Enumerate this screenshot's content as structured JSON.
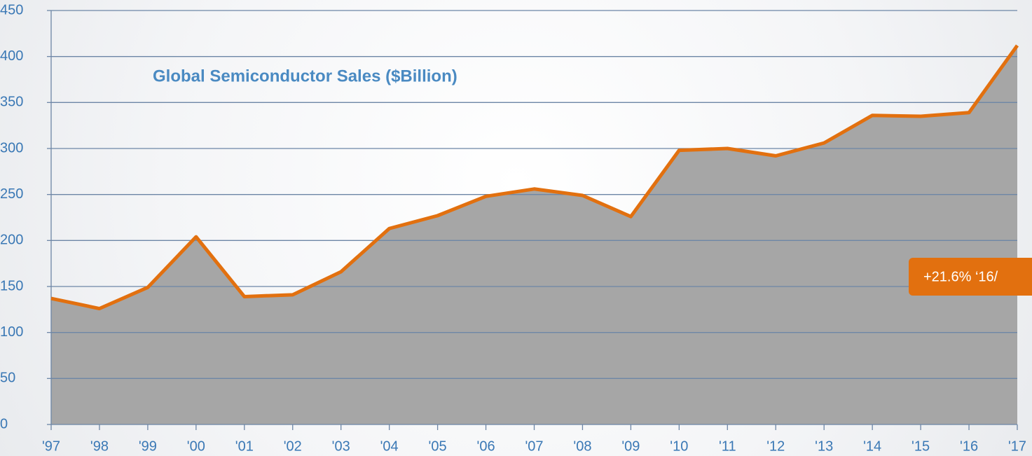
{
  "chart_data": {
    "type": "area",
    "title": "Global Semiconductor Sales ($Billion)",
    "categories": [
      "'97",
      "'98",
      "'99",
      "'00",
      "'01",
      "'02",
      "'03",
      "'04",
      "'05",
      "'06",
      "'07",
      "'08",
      "'09",
      "'10",
      "'11",
      "'12",
      "'13",
      "'14",
      "'15",
      "'16",
      "'17"
    ],
    "series": [
      {
        "name": "Global Semiconductor Sales",
        "color": "#e2700f",
        "fill": "#a6a6a6",
        "values": [
          137,
          126,
          149,
          204,
          139,
          141,
          166,
          213,
          227,
          248,
          256,
          249,
          226,
          298,
          300,
          292,
          306,
          336,
          335,
          339,
          412
        ]
      }
    ],
    "ylim": [
      0,
      450
    ],
    "yticks": [
      0,
      50,
      100,
      150,
      200,
      250,
      300,
      350,
      400,
      450
    ],
    "grid": true,
    "annotation": "+21.6% ‘16/"
  }
}
